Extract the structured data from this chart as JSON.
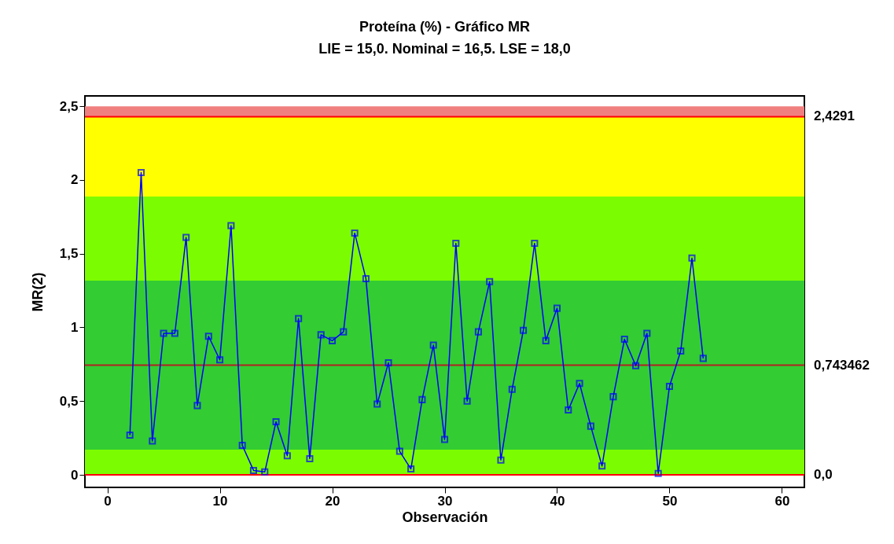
{
  "chart_data": {
    "type": "line",
    "title": "Proteína (%) - Gráfico MR",
    "subtitle": "LIE = 15,0. Nominal = 16,5. LSE = 18,0",
    "xlabel": "Observación",
    "ylabel": "MR(2)",
    "x": [
      2,
      3,
      4,
      5,
      6,
      7,
      8,
      9,
      10,
      11,
      12,
      13,
      14,
      15,
      16,
      17,
      18,
      19,
      20,
      21,
      22,
      23,
      24,
      25,
      26,
      27,
      28,
      29,
      30,
      31,
      32,
      33,
      34,
      35,
      36,
      37,
      38,
      39,
      40,
      41,
      42,
      43,
      44,
      45,
      46,
      47,
      48,
      49,
      50,
      51,
      52,
      53
    ],
    "series": [
      {
        "color": "#0000ff",
        "values": [
          0.27,
          2.05,
          0.23,
          0.96,
          0.96,
          1.61,
          0.47,
          0.94,
          0.78,
          1.69,
          0.2,
          0.03,
          0.02,
          0.36,
          0.13,
          1.06,
          0.11,
          0.95,
          0.91,
          0.97,
          1.64,
          1.33,
          0.48,
          0.76,
          0.16,
          0.04,
          0.51,
          0.88,
          0.24,
          1.57,
          0.5,
          0.97,
          1.31,
          0.1,
          0.58,
          0.98,
          1.57,
          0.91,
          1.13,
          0.44,
          0.62,
          0.33,
          0.06,
          0.53,
          0.92,
          0.74,
          0.96,
          0.01,
          0.6,
          0.84,
          1.47,
          0.79
        ]
      }
    ],
    "xlim": [
      -2,
      62
    ],
    "xticks": [
      0,
      10,
      20,
      30,
      40,
      50,
      60
    ],
    "ylim": [
      -0.085,
      2.57
    ],
    "yticks": [
      0,
      {
        "value": 0.5,
        "label": "0,5"
      },
      1,
      {
        "value": 1.5,
        "label": "1,5"
      },
      2,
      {
        "value": 2.5,
        "label": "2,5"
      }
    ],
    "bands": [
      {
        "axis": "y",
        "from": 2.4291,
        "to": 2.5,
        "color": "#f08080"
      },
      {
        "axis": "y",
        "from": 1.887,
        "to": 2.4291,
        "color": "#ffff00"
      },
      {
        "axis": "y",
        "from": 1.317,
        "to": 1.887,
        "color": "#7cfc00"
      },
      {
        "axis": "y",
        "from": 0.171,
        "to": 1.317,
        "color": "#33cc33"
      },
      {
        "axis": "y",
        "from": 0,
        "to": 0.171,
        "color": "#7cfc00"
      }
    ],
    "ref_lines": [
      {
        "axis": "y",
        "value": 2.4291,
        "label": "2,4291",
        "color": "#ff0000"
      },
      {
        "axis": "y",
        "value": 0.743462,
        "label": "0,743462",
        "color": "#b22222"
      },
      {
        "axis": "y",
        "value": 0,
        "label": "0,0",
        "color": "#ff0000"
      }
    ],
    "grid": false,
    "marker": "square",
    "line_style": "solid"
  }
}
